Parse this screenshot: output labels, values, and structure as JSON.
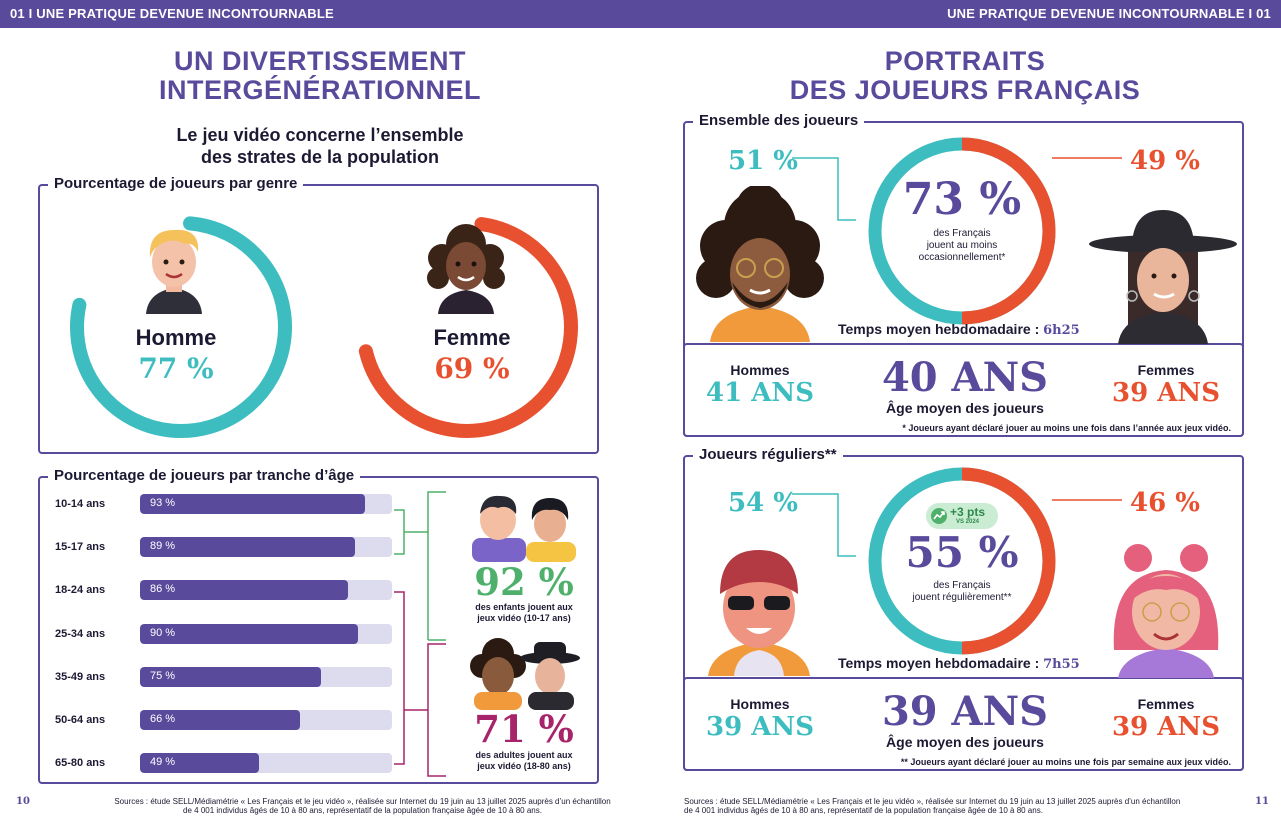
{
  "header": {
    "left": "01 I  UNE PRATIQUE DEVENUE INCONTOURNABLE",
    "right": "UNE PRATIQUE DEVENUE INCONTOURNABLE  I  01"
  },
  "left_page": {
    "title_line1": "UN DIVERTISSEMENT",
    "title_line2": "INTERGÉNÉRATIONNEL",
    "subtitle_line1": "Le jeu vidéo concerne l’ensemble",
    "subtitle_line2": "des strates de la population",
    "gender_box": {
      "label": "Pourcentage de joueurs par genre",
      "homme_label": "Homme",
      "homme_value": "77 %",
      "homme_pct": 77,
      "femme_label": "Femme",
      "femme_value": "69 %",
      "femme_pct": 69
    },
    "age_box": {
      "label": "Pourcentage de joueurs par tranche d’âge",
      "rows": [
        {
          "label": "10-14 ans",
          "value": "93 %",
          "pct": 93
        },
        {
          "label": "15-17 ans",
          "value": "89 %",
          "pct": 89
        },
        {
          "label": "18-24 ans",
          "value": "86 %",
          "pct": 86
        },
        {
          "label": "25-34 ans",
          "value": "90 %",
          "pct": 90
        },
        {
          "label": "35-49 ans",
          "value": "75 %",
          "pct": 75
        },
        {
          "label": "50-64 ans",
          "value": "66 %",
          "pct": 66
        },
        {
          "label": "65-80 ans",
          "value": "49 %",
          "pct": 49
        }
      ],
      "kids_value": "92 %",
      "kids_text1": "des enfants jouent aux",
      "kids_text2": "jeux vidéo (10-17 ans)",
      "adults_value": "71 %",
      "adults_text1": "des adultes jouent aux",
      "adults_text2": "jeux vidéo (18-80 ans)"
    },
    "page_number": "10",
    "source_line1": "Sources : étude SELL/Médiamétrie « Les Français et le jeu vidéo », réalisée sur Internet du 19 juin au 13 juillet 2025 auprès d’un échantillon",
    "source_line2": "de 4 001 individus âgés de 10 à 80 ans, représentatif de la population française âgée de 10 à 80 ans."
  },
  "right_page": {
    "title_line1": "PORTRAITS",
    "title_line2": "DES JOUEURS FRANÇAIS",
    "ensemble": {
      "label": "Ensemble des joueurs",
      "men_share": "51 %",
      "women_share": "49 %",
      "main_value": "73 %",
      "main_pct": 73,
      "main_text1": "des Français",
      "main_text2": "jouent au moins",
      "main_text3": "occasionnellement*",
      "time_label": "Temps moyen hebdomadaire :",
      "time_value": "6h25",
      "hommes_label": "Hommes",
      "hommes_age": "41 ANS",
      "avg_age": "40 ANS",
      "avg_label": "Âge moyen des joueurs",
      "femmes_label": "Femmes",
      "femmes_age": "39 ANS",
      "note": "* Joueurs ayant déclaré jouer au moins une fois dans l’année aux jeux vidéo."
    },
    "reguliers": {
      "label": "Joueurs réguliers**",
      "men_share": "54 %",
      "women_share": "46 %",
      "badge_value": "+3 pts",
      "badge_sub": "VS 2024",
      "main_value": "55 %",
      "main_pct": 55,
      "main_text1": "des Français",
      "main_text2": "jouent régulièrement**",
      "time_label": "Temps moyen hebdomadaire :",
      "time_value": "7h55",
      "hommes_label": "Hommes",
      "hommes_age": "39 ANS",
      "avg_age": "39 ANS",
      "avg_label": "Âge moyen des joueurs",
      "femmes_label": "Femmes",
      "femmes_age": "39 ANS",
      "note": "** Joueurs ayant déclaré jouer au moins une fois par semaine aux jeux vidéo."
    },
    "page_number": "11",
    "source_line1": "Sources : étude SELL/Médiamétrie « Les Français et le jeu vidéo », réalisée sur Internet du 19 juin au 13 juillet 2025 auprès d’un échantillon",
    "source_line2": "de 4 001 individus âgés de 10 à 80 ans, représentatif de la population française âgée de 10 à 80 ans."
  },
  "colors": {
    "purple": "#5a4a9c",
    "teal": "#3dbdc0",
    "red": "#e8512f",
    "plum": "#a7236a",
    "green": "#4fb06c"
  }
}
